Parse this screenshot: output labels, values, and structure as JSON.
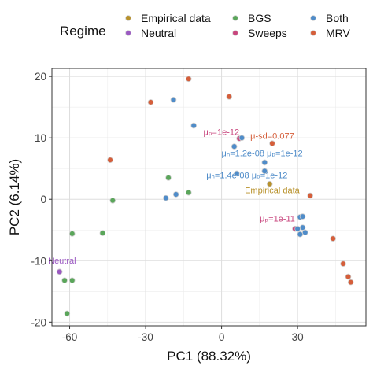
{
  "chart_data": {
    "type": "scatter",
    "title": "",
    "xlabel": "PC1 (88.32%)",
    "ylabel": "PC2 (6.14%)",
    "xlim": [
      -67,
      57
    ],
    "ylim": [
      -20.6,
      21.3
    ],
    "x_ticks": [
      -60,
      -30,
      0,
      30
    ],
    "x_tick_labels": [
      "-60",
      "-30",
      "0",
      "30"
    ],
    "y_ticks": [
      -20,
      -10,
      0,
      10,
      20
    ],
    "y_tick_labels": [
      "-20",
      "-10",
      "0",
      "10",
      "20"
    ],
    "grid": true,
    "legend": {
      "title": "Regime",
      "position": "top",
      "entries": [
        {
          "name": "Empirical data",
          "color": "#b8912a"
        },
        {
          "name": "BGS",
          "color": "#5aa65a"
        },
        {
          "name": "Both",
          "color": "#4f8cc9"
        },
        {
          "name": "Neutral",
          "color": "#9b59c2"
        },
        {
          "name": "Sweeps",
          "color": "#c8457d"
        },
        {
          "name": "MRV",
          "color": "#d55e3a"
        }
      ]
    },
    "series": [
      {
        "name": "Empirical data",
        "color": "#b8912a",
        "points": [
          [
            19,
            2.5
          ]
        ]
      },
      {
        "name": "Neutral",
        "color": "#9b59c2",
        "points": [
          [
            -64,
            -11.8
          ]
        ]
      },
      {
        "name": "BGS",
        "color": "#5aa65a",
        "points": [
          [
            -59,
            -5.6
          ],
          [
            -47,
            -5.5
          ],
          [
            -43,
            -0.2
          ],
          [
            -21,
            3.5
          ],
          [
            -13,
            1.1
          ],
          [
            -62,
            -13.2
          ],
          [
            -59,
            -13.2
          ],
          [
            -61,
            -18.6
          ]
        ]
      },
      {
        "name": "Sweeps",
        "color": "#c8457d",
        "points": [
          [
            7,
            9.9
          ],
          [
            29,
            -4.8
          ]
        ]
      },
      {
        "name": "Both",
        "color": "#4f8cc9",
        "points": [
          [
            -19,
            16.2
          ],
          [
            -11,
            12.0
          ],
          [
            8,
            10.0
          ],
          [
            5,
            8.6
          ],
          [
            17,
            6.0
          ],
          [
            6,
            4.2
          ],
          [
            17,
            4.6
          ],
          [
            -18,
            0.8
          ],
          [
            -22,
            0.2
          ],
          [
            31,
            -2.9
          ],
          [
            32,
            -2.8
          ],
          [
            32,
            -4.6
          ],
          [
            33,
            -5.4
          ],
          [
            31,
            -5.7
          ],
          [
            30,
            -4.8
          ]
        ]
      },
      {
        "name": "MRV",
        "color": "#d55e3a",
        "points": [
          [
            -13,
            19.6
          ],
          [
            3,
            16.7
          ],
          [
            -28,
            15.8
          ],
          [
            -44,
            6.4
          ],
          [
            20,
            9.1
          ],
          [
            35,
            0.6
          ],
          [
            44,
            -6.4
          ],
          [
            48,
            -10.5
          ],
          [
            50,
            -12.6
          ],
          [
            51,
            -13.5
          ]
        ]
      }
    ],
    "annotations": [
      {
        "text": "μₚ=1e-12",
        "x": 7,
        "y": 10.5,
        "color": "#c8457d",
        "anchor": "end"
      },
      {
        "text": "μ-sd=0.077",
        "x": 20,
        "y": 9.8,
        "color": "#d55e3a",
        "anchor": "middle"
      },
      {
        "text": "μₙ=1.2e-08 μₚ=1e-12",
        "x": 16,
        "y": 7.0,
        "color": "#4f8cc9",
        "anchor": "middle"
      },
      {
        "text": "μₙ=1.4e-08 μₚ=1e-12",
        "x": 10,
        "y": 3.4,
        "color": "#4f8cc9",
        "anchor": "middle"
      },
      {
        "text": "Empirical data",
        "x": 20,
        "y": 1.0,
        "color": "#b8912a",
        "anchor": "middle"
      },
      {
        "text": "μₚ=1e-11",
        "x": 29,
        "y": -3.6,
        "color": "#c8457d",
        "anchor": "end"
      },
      {
        "text": "Neutral",
        "x": -63,
        "y": -10.5,
        "color": "#9b59c2",
        "anchor": "middle"
      }
    ]
  }
}
